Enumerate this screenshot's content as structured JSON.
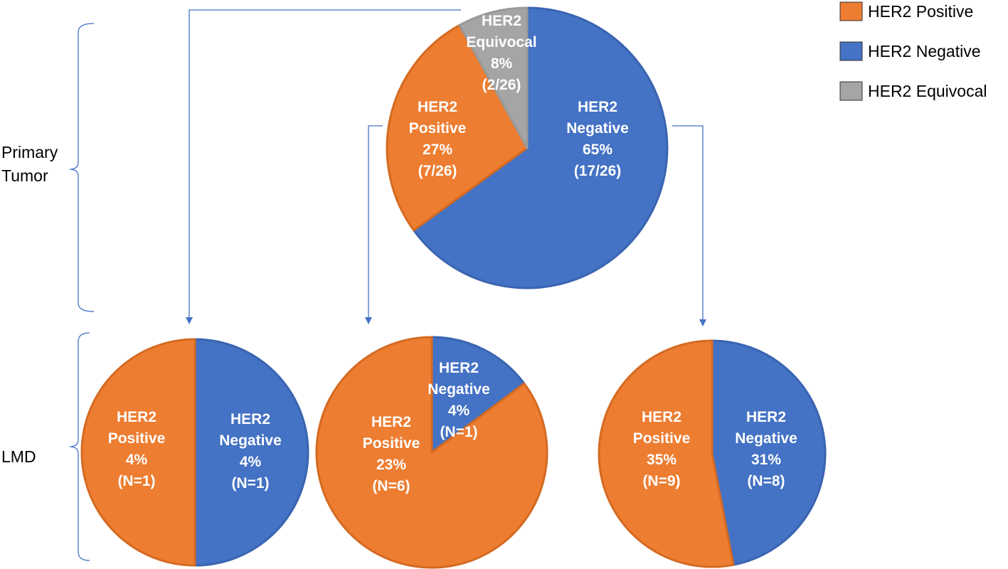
{
  "colors": {
    "positive": "#ED7D31",
    "negative": "#4472C4",
    "equivocal": "#A5A5A5",
    "connector": "#4472C4",
    "bracket": "#4472C4"
  },
  "row_labels": {
    "primary": [
      "Primary",
      "Tumor"
    ],
    "lmd": "LMD"
  },
  "legend": [
    {
      "label": "HER2 Positive",
      "color": "#ED7D31"
    },
    {
      "label": "HER2 Negative",
      "color": "#4472C4"
    },
    {
      "label": "HER2 Equivocal",
      "color": "#A5A5A5"
    }
  ],
  "chart_data": [
    {
      "type": "pie",
      "group": "Primary Tumor",
      "slices": [
        {
          "name": "HER2 Negative",
          "value": 65,
          "color": "#4472C4",
          "label": [
            "HER2",
            "Negative",
            "65%",
            "(17/26)"
          ]
        },
        {
          "name": "HER2 Positive",
          "value": 27,
          "color": "#ED7D31",
          "label": [
            "HER2",
            "Positive",
            "27%",
            "(7/26)"
          ]
        },
        {
          "name": "HER2 Equivocal",
          "value": 8,
          "color": "#A5A5A5",
          "label": [
            "HER2",
            "Equivocal",
            "8%",
            "(2/26)"
          ]
        }
      ]
    },
    {
      "type": "pie",
      "group": "LMD",
      "slices": [
        {
          "name": "HER2 Negative",
          "value": 4,
          "color": "#4472C4",
          "label": [
            "HER2",
            "Negative",
            "4%",
            "(N=1)"
          ]
        },
        {
          "name": "HER2 Positive",
          "value": 4,
          "color": "#ED7D31",
          "label": [
            "HER2",
            "Positive",
            "4%",
            "(N=1)"
          ]
        }
      ]
    },
    {
      "type": "pie",
      "group": "LMD",
      "slices": [
        {
          "name": "HER2 Negative",
          "value": 4,
          "color": "#4472C4",
          "label": [
            "HER2",
            "Negative",
            "4%",
            "(N=1)"
          ]
        },
        {
          "name": "HER2 Positive",
          "value": 23,
          "color": "#ED7D31",
          "label": [
            "HER2",
            "Positive",
            "23%",
            "(N=6)"
          ]
        }
      ]
    },
    {
      "type": "pie",
      "group": "LMD",
      "slices": [
        {
          "name": "HER2 Negative",
          "value": 31,
          "color": "#4472C4",
          "label": [
            "HER2",
            "Negative",
            "31%",
            "(N=8)"
          ]
        },
        {
          "name": "HER2 Positive",
          "value": 35,
          "color": "#ED7D31",
          "label": [
            "HER2",
            "Positive",
            "35%",
            "(N=9)"
          ]
        }
      ]
    }
  ]
}
